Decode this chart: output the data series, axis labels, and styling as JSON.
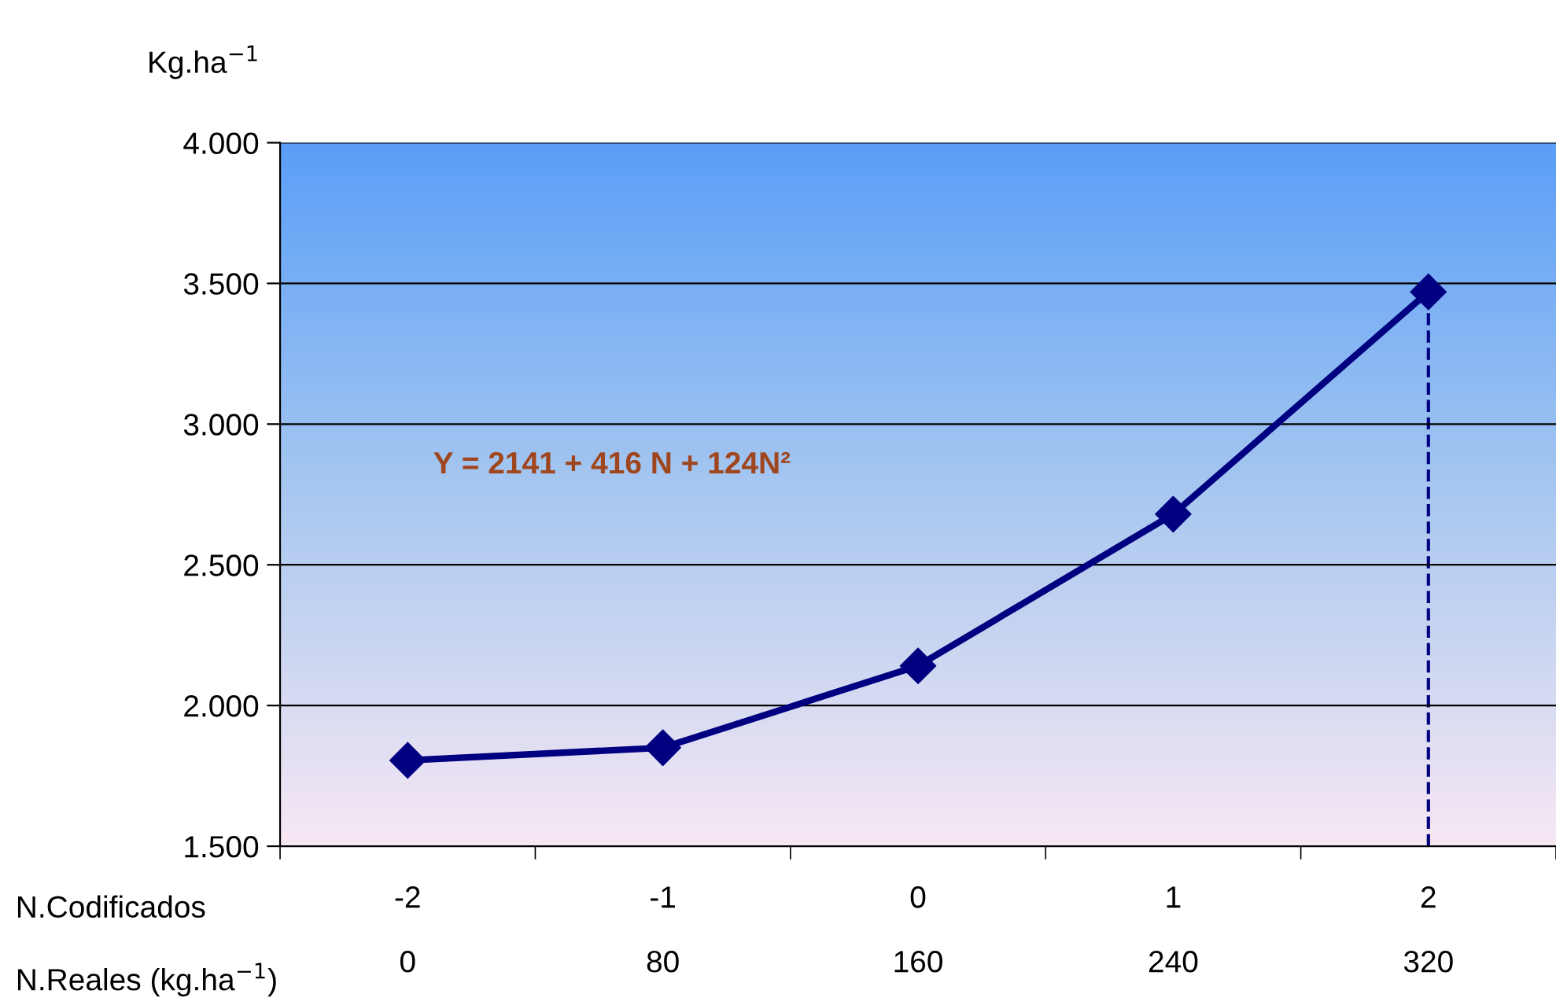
{
  "chart_data": {
    "type": "line",
    "ylabel": "Kg.ha$^{−1}$",
    "xlabel": "N.Codificados",
    "x2label": "N.Reales (kg.ha$^{−1}$)",
    "categories": [
      "-2",
      "-1",
      "0",
      "1",
      "2"
    ],
    "series": [
      {
        "color": "#000080",
        "values": [
          1805,
          1850,
          2141,
          2680,
          3470
        ]
      }
    ],
    "ylim": [
      1500,
      4000
    ],
    "yticks": [
      {
        "value": 1500,
        "label": "1.500"
      },
      {
        "value": 2000,
        "label": "2.000"
      },
      {
        "value": 2500,
        "label": "2.500"
      },
      {
        "value": 3000,
        "label": "3.000"
      },
      {
        "value": 3500,
        "label": "3.500"
      },
      {
        "value": 4000,
        "label": "4.000"
      }
    ],
    "x2lim": [
      -40,
      360
    ],
    "x2ticks": [
      0,
      80,
      160,
      240,
      320
    ],
    "ref_lines": [
      {
        "axis": "x",
        "value": "2",
        "color": "#000080",
        "line_style": "dashed"
      }
    ],
    "annotations": [
      "Y = 2141 + 416 N + 124N²"
    ],
    "grid": "y",
    "marker": "diamond",
    "line_style": "solid",
    "legend": false
  }
}
